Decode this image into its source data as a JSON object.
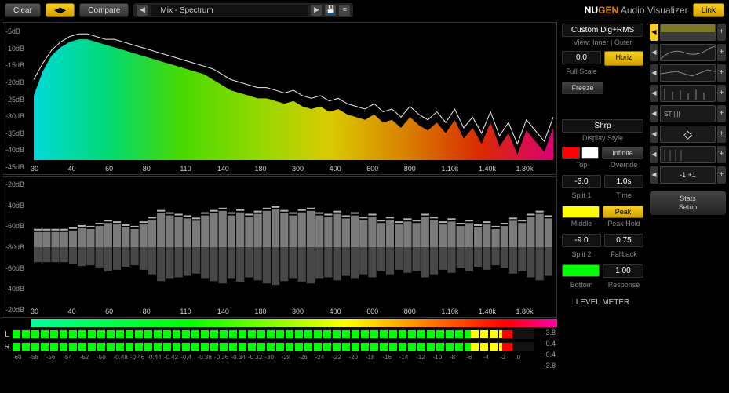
{
  "toolbar": {
    "clear": "Clear",
    "compare": "Compare",
    "preset": "Mix - Spectrum",
    "link": "Link"
  },
  "brand": {
    "nu": "NU",
    "gen": "GEN",
    "rest": " Audio Visualizer"
  },
  "spectrum": {
    "db_ticks": [
      "-5dB",
      "-10dB",
      "-15dB",
      "-20dB",
      "-25dB",
      "-30dB",
      "-35dB",
      "-40dB",
      "-45dB"
    ],
    "freq_ticks": [
      "30",
      "40",
      "60",
      "80",
      "110",
      "140",
      "180",
      "300",
      "400",
      "600",
      "800",
      "1.10k",
      "1.40k",
      "1.80k"
    ],
    "fill_gradient": [
      "#00ffff",
      "#00ff88",
      "#55ff00",
      "#aaff00",
      "#ffee00",
      "#ff9900",
      "#ff3300",
      "#ff0088"
    ],
    "line_color": "#eeeeee",
    "values_db": [
      -26,
      -17,
      -11,
      -8,
      -6,
      -5,
      -5,
      -6,
      -7,
      -8,
      -9,
      -10,
      -11,
      -12,
      -13,
      -14,
      -15,
      -16,
      -17,
      -18,
      -20,
      -22,
      -24,
      -25,
      -26,
      -27,
      -27,
      -28,
      -29,
      -28,
      -30,
      -31,
      -30,
      -32,
      -31,
      -33,
      -34,
      -35,
      -33,
      -36,
      -35,
      -38,
      -34,
      -37,
      -39,
      -36,
      -40,
      -35,
      -42,
      -38,
      -44,
      -36,
      -45,
      -40,
      -48,
      -39,
      -43,
      -47,
      -38
    ],
    "peak_line_db": [
      -20,
      -14,
      -9,
      -6,
      -4,
      -3,
      -3,
      -4,
      -5,
      -5,
      -6,
      -7,
      -8,
      -9,
      -10,
      -11,
      -12,
      -13,
      -14,
      -15,
      -16,
      -18,
      -20,
      -21,
      -22,
      -23,
      -23,
      -24,
      -25,
      -24,
      -26,
      -27,
      -26,
      -28,
      -27,
      -29,
      -30,
      -31,
      -29,
      -32,
      -31,
      -34,
      -30,
      -33,
      -35,
      -32,
      -36,
      -31,
      -38,
      -34,
      -40,
      -32,
      -41,
      -36,
      -44,
      -35,
      -39,
      -43,
      -34
    ]
  },
  "bar_view": {
    "db_ticks": [
      "-20dB",
      "-40dB",
      "-60dB",
      "-80dB",
      "-60dB",
      "-40dB",
      "-20dB"
    ],
    "freq_ticks": [
      "30",
      "40",
      "60",
      "80",
      "110",
      "140",
      "180",
      "300",
      "400",
      "600",
      "800",
      "1.10k",
      "1.40k",
      "1.80k"
    ],
    "bar_color": "#cccccc",
    "bars_db": [
      -80,
      -80,
      -80,
      -80,
      -78,
      -75,
      -76,
      -72,
      -68,
      -70,
      -74,
      -76,
      -70,
      -64,
      -55,
      -58,
      -60,
      -62,
      -65,
      -58,
      -55,
      -52,
      -58,
      -54,
      -60,
      -56,
      -52,
      -50,
      -55,
      -58,
      -54,
      -52,
      -58,
      -60,
      -56,
      -62,
      -58,
      -64,
      -60,
      -68,
      -64,
      -70,
      -66,
      -68,
      -60,
      -64,
      -70,
      -66,
      -72,
      -68,
      -74,
      -70,
      -76,
      -72,
      -65,
      -68,
      -60,
      -56,
      -62
    ]
  },
  "meter": {
    "ch_l": "L",
    "ch_r": "R",
    "peak_top": "-3.8",
    "l_val": "-0.4",
    "r_val": "-0.4",
    "peak_bot": "-3.8",
    "scale": [
      "-60",
      "-58",
      "-56",
      "-54",
      "-52",
      "-50",
      "-0.48",
      "-0.46",
      "-0.44",
      "-0.42",
      "-0.4",
      "-0.38",
      "-0.36",
      "-0.34",
      "-0.32",
      "-30",
      "-28",
      "-26",
      "-24",
      "-22",
      "-20",
      "-18",
      "-16",
      "-14",
      "-12",
      "-10",
      "-8",
      "-6",
      "-4",
      "-2",
      "0"
    ],
    "l_pct": 88,
    "l_yellow_pct": 6,
    "l_red_pct": 2,
    "r_pct": 88,
    "r_yellow_pct": 6,
    "r_red_pct": 2
  },
  "controls": {
    "preset_mode": "Custom Dig+RMS",
    "view_label": "View: Inner | Outer",
    "full_scale_val": "0.0",
    "full_scale_label": "Full Scale",
    "horiz": "Horiz",
    "freeze": "Freeze",
    "style_val": "Shrp",
    "style_label": "Display Style",
    "top_color": "#ff0000",
    "top_color2": "#ffffff",
    "top_label": "Top",
    "infinite": "Infinite",
    "override_label": "Override",
    "split1_val": "-3.0",
    "split1_label": "Split 1",
    "time_val": "1.0s",
    "time_label": "Time",
    "middle_color": "#ffff00",
    "middle_label": "Middle",
    "peak": "Peak",
    "peak_hold_label": "Peak Hold",
    "split2_val": "-9.0",
    "split2_label": "Split 2",
    "fallback_val": "0.75",
    "fallback_label": "Fallback",
    "bottom_color": "#00ff00",
    "bottom_label": "Bottom",
    "response_val": "1.00",
    "response_label": "Response",
    "level_meter": "LEVEL METER"
  },
  "side": {
    "stats_setup": "Stats\nSetup",
    "slot_labels": [
      "-1 +1"
    ]
  }
}
